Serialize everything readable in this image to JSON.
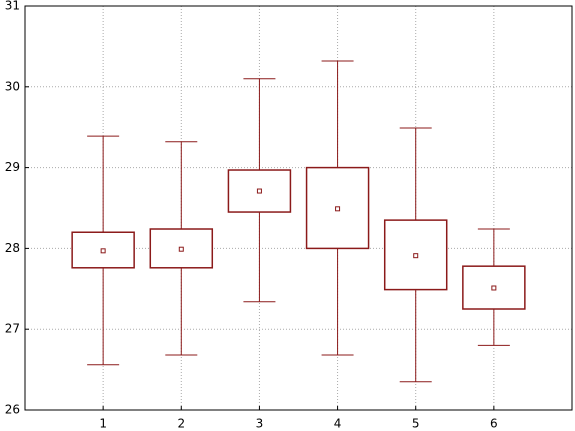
{
  "chart_data": {
    "type": "box",
    "x": [
      1,
      2,
      3,
      4,
      5,
      6
    ],
    "xlim": [
      0,
      7
    ],
    "xticks": [
      1,
      2,
      3,
      4,
      5,
      6
    ],
    "ylim": [
      26,
      31
    ],
    "yticks": [
      26,
      27,
      28,
      29,
      30,
      31
    ],
    "grid": true,
    "color": "#8b1a1a",
    "boxes": {
      "whisker_low": [
        26.56,
        26.68,
        27.34,
        26.68,
        26.35,
        26.8
      ],
      "q1": [
        27.76,
        27.76,
        28.45,
        28.0,
        27.49,
        27.25
      ],
      "center": [
        27.97,
        27.99,
        28.71,
        28.49,
        27.91,
        27.51
      ],
      "q3": [
        28.2,
        28.24,
        28.97,
        29.0,
        28.35,
        27.78
      ],
      "whisker_high": [
        29.39,
        29.32,
        30.1,
        30.32,
        29.49,
        28.24
      ]
    }
  }
}
